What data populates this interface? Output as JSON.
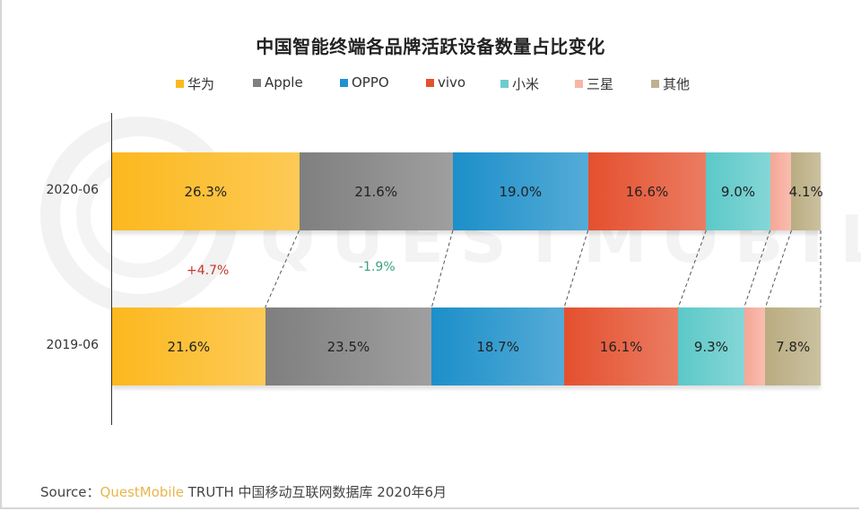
{
  "chart_data": {
    "type": "bar",
    "orientation": "horizontal",
    "stacked": true,
    "percent_stacked": true,
    "title": "中国智能终端各品牌活跃设备数量占比变化",
    "xlabel": "",
    "ylabel": "",
    "categories": [
      "2020-06",
      "2019-06"
    ],
    "series": [
      {
        "name": "华为",
        "color": "#fcb81e",
        "values": [
          26.3,
          21.6
        ],
        "labels": [
          "26.3%",
          "21.6%"
        ]
      },
      {
        "name": "Apple",
        "color": "#7f7f7f",
        "values": [
          21.6,
          23.5
        ],
        "labels": [
          "21.6%",
          "23.5%"
        ]
      },
      {
        "name": "OPPO",
        "color": "#1c8fc9",
        "values": [
          19.0,
          18.7
        ],
        "labels": [
          "19.0%",
          "18.7%"
        ]
      },
      {
        "name": "vivo",
        "color": "#e4502e",
        "values": [
          16.6,
          16.1
        ],
        "labels": [
          "16.6%",
          "16.1%"
        ]
      },
      {
        "name": "小米",
        "color": "#5cc8c8",
        "values": [
          9.0,
          9.3
        ],
        "labels": [
          "9.0%",
          "9.3%"
        ]
      },
      {
        "name": "三星",
        "color": "#f6a796",
        "values": [
          3.0,
          3.0
        ],
        "labels": [
          "",
          ""
        ]
      },
      {
        "name": "其他",
        "color": "#b9ac80",
        "values": [
          4.1,
          7.8
        ],
        "labels": [
          "4.1%",
          "7.8%"
        ]
      }
    ],
    "annotations": [
      {
        "text": "+4.7%",
        "series": "华为",
        "color": "#c0392b"
      },
      {
        "text": "-1.9%",
        "series": "Apple",
        "color": "#3aa37a"
      }
    ],
    "legend_position": "top",
    "grid": false,
    "xlim": [
      0,
      100
    ]
  },
  "title": "中国智能终端各品牌活跃设备数量占比变化",
  "legend": [
    {
      "label": "华为",
      "color": "#fcb81e"
    },
    {
      "label": "Apple",
      "color": "#808080"
    },
    {
      "label": "OPPO",
      "color": "#1f93cf"
    },
    {
      "label": "vivo",
      "color": "#e4502e"
    },
    {
      "label": "小米",
      "color": "#6dcccc"
    },
    {
      "label": "三星",
      "color": "#f7b5a5"
    },
    {
      "label": "其他",
      "color": "#bdb190"
    }
  ],
  "rows": [
    {
      "label": "2020-06"
    },
    {
      "label": "2019-06"
    }
  ],
  "deltas": [
    {
      "text": "+4.7%",
      "color": "#c0392b"
    },
    {
      "text": "-1.9%",
      "color": "#3aa37a"
    }
  ],
  "watermark": "QUESTMOBILE",
  "source": {
    "prefix": "Source：",
    "brand": "QuestMobile",
    "rest": "TRUTH 中国移动互联网数据库 2020年6月"
  }
}
